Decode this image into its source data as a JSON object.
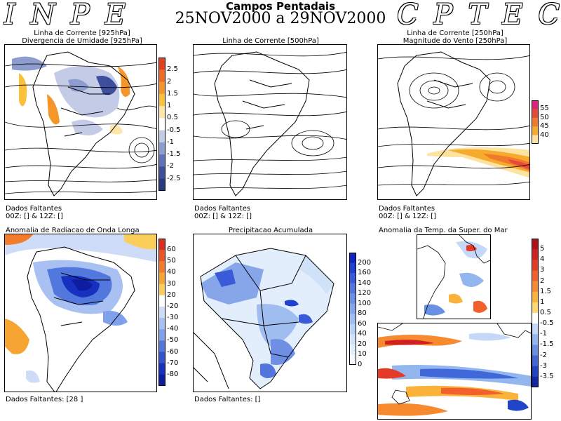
{
  "watermark": {
    "left": "INPE",
    "right": "CPTEC"
  },
  "header": {
    "line1": "Campos Pentadais",
    "line2": "25NOV2000 a 29NOV2000"
  },
  "panels": {
    "p1": {
      "title1": "Linha de Corrente [925hPa]",
      "title2": "Divergencia de Umidade [925hPa]",
      "missing1": "Dados Faltantes",
      "missing2": "00Z: [] & 12Z: []",
      "scale": [
        "2.5",
        "2",
        "1.5",
        "1",
        "0.5",
        "-0.5",
        "-1",
        "-1.5",
        "-2",
        "-2.5"
      ],
      "colors": [
        "#e2401c",
        "#f06a23",
        "#f5962b",
        "#f9c23a",
        "#fde6a8",
        "#ffffff",
        "#c4cbe6",
        "#8e9dd0",
        "#6173b8",
        "#3d4f9c",
        "#253a80"
      ]
    },
    "p2": {
      "title1": "Linha de Corrente [500hPa]",
      "missing1": "Dados Faltantes",
      "missing2": "00Z: [] & 12Z: []"
    },
    "p3": {
      "title1": "Linha de Corrente [250hPa]",
      "title2": "Magnitude do Vento [250hPa]",
      "missing1": "Dados Faltantes",
      "missing2": "00Z: [] & 12Z: []",
      "scale": [
        "55",
        "50",
        "45",
        "40"
      ],
      "colors": [
        "#e0207a",
        "#e9493a",
        "#f07a2a",
        "#f6ab2e",
        "#fde2a0"
      ]
    },
    "p4": {
      "title1": "Anomalia de Radiacao de Onda Longa",
      "missing1": "Dados Faltantes: [28 ]",
      "scale": [
        "60",
        "50",
        "40",
        "30",
        "20",
        "-20",
        "-30",
        "-40",
        "-50",
        "-60",
        "-70",
        "-80"
      ],
      "colors": [
        "#d73020",
        "#e95524",
        "#f27c2a",
        "#f7a532",
        "#fbcd5a",
        "#ffffff",
        "#cfdcf8",
        "#a9c1f2",
        "#7fa0ea",
        "#5378dd",
        "#3153d0",
        "#1730c0",
        "#0d1ca0"
      ]
    },
    "p5": {
      "title1": "Precipitacao Acumulada",
      "missing1": "Dados Faltantes: []",
      "scale": [
        "200",
        "160",
        "140",
        "120",
        "100",
        "80",
        "60",
        "40",
        "20",
        "10",
        "0"
      ],
      "colors": [
        "#1024c0",
        "#2040d0",
        "#3a5ad8",
        "#5575de",
        "#6e8fe4",
        "#87a6ea",
        "#a0bdf0",
        "#b8d2f4",
        "#cfe2f8",
        "#e2eefc",
        "#f5f9ff"
      ]
    },
    "p6": {
      "title1": "Anomalia da Temp. da Super. do Mar",
      "scale": [
        "5",
        "4",
        "3",
        "2",
        "1.5",
        "1",
        "0.5",
        "-0.5",
        "-1",
        "-1.5",
        "-2",
        "-3",
        "-3.5"
      ],
      "colors": [
        "#b0101a",
        "#d02020",
        "#e53a25",
        "#f2612b",
        "#f7892f",
        "#fab23a",
        "#fdd86a",
        "#ffffff",
        "#c4d8f8",
        "#94b6ef",
        "#6890e3",
        "#4068d8",
        "#2244c8",
        "#1028a8"
      ]
    }
  }
}
